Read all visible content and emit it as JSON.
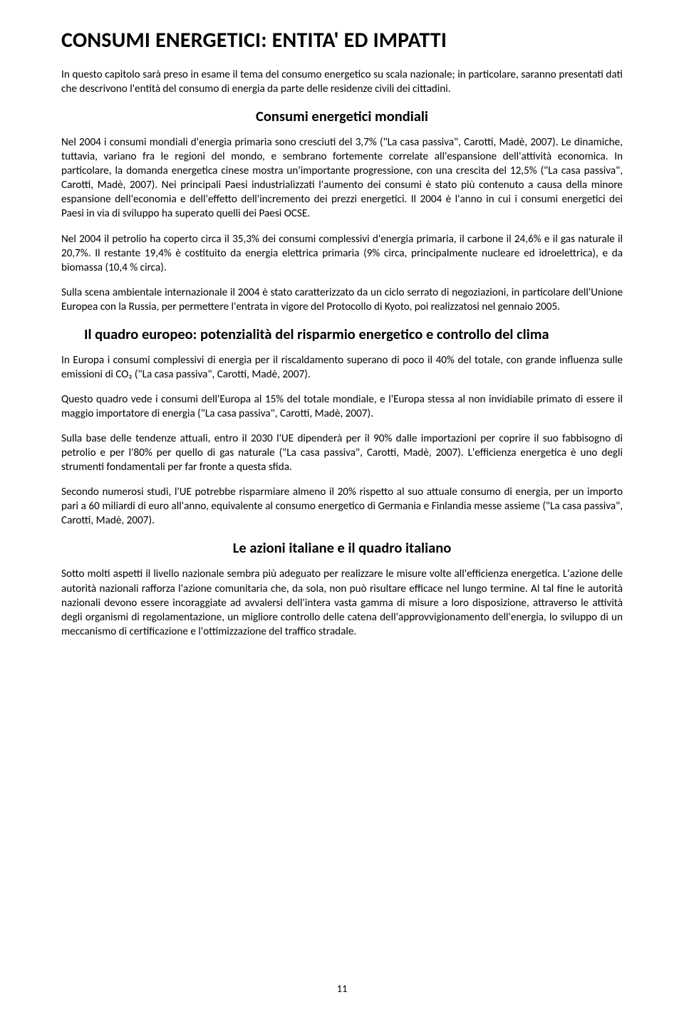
{
  "title": "CONSUMI ENERGETICI: ENTITA' ED IMPATTI",
  "intro": "In questo capitolo sarà preso in esame il tema del consumo energetico su scala nazionale; in particolare, saranno presentati dati che descrivono l'entità del consumo di energia da parte delle residenze civili dei cittadini.",
  "h_mondiali": "Consumi energetici mondiali",
  "p_mondiali_1": "Nel  2004 i consumi mondiali d'energia primaria sono cresciuti del 3,7% (\"La casa passiva\", Carotti, Madè, 2007). Le dinamiche, tuttavia, variano fra le regioni del mondo, e sembrano fortemente correlate all'espansione dell'attività economica. In particolare, la domanda energetica cinese mostra un'importante progressione, con una crescita del 12,5% (\"La casa passiva\", Carotti, Madè, 2007). Nei principali Paesi industrializzati l'aumento dei consumi è stato più contenuto a causa della minore espansione dell'economia e dell'effetto dell'incremento dei prezzi energetici. Il 2004 è l'anno in cui i consumi energetici dei Paesi in via di sviluppo ha superato quelli dei Paesi OCSE.",
  "p_mondiali_2": "Nel 2004 il petrolio ha coperto circa il 35,3% dei consumi complessivi d'energia primaria, il carbone il 24,6% e il gas naturale il 20,7%. Il restante 19,4% è costituito da energia elettrica primaria (9% circa, principalmente nucleare ed idroelettrica), e da biomassa (10,4 % circa).",
  "p_mondiali_3": "Sulla scena ambientale internazionale il 2004 è stato caratterizzato da un ciclo serrato di negoziazioni, in particolare dell'Unione Europea con la Russia, per permettere l'entrata in vigore del Protocollo di Kyoto, poi realizzatosi nel gennaio 2005.",
  "h_europeo": "Il quadro europeo: potenzialità del risparmio energetico e controllo del clima",
  "p_europeo_1": "In Europa i consumi complessivi di energia per il riscaldamento superano di poco il 40% del totale, con grande influenza sulle emissioni di CO₂ (\"La casa passiva\", Carotti, Madè, 2007).",
  "p_europeo_2": "Questo quadro vede i consumi dell'Europa al 15% del totale mondiale, e l'Europa stessa al non invidiabile primato di essere il maggio importatore di energia (\"La casa passiva\", Carotti, Madè, 2007).",
  "p_europeo_3": "Sulla base delle tendenze attuali, entro il 2030 l'UE dipenderà per il 90% dalle importazioni per coprire il suo fabbisogno di petrolio e per l'80% per quello di gas naturale (\"La casa passiva\", Carotti, Madè, 2007). L'efficienza energetica è uno degli strumenti fondamentali per far fronte a questa sfida.",
  "p_europeo_4": "Secondo numerosi studi, l'UE potrebbe risparmiare almeno il 20% rispetto al suo attuale consumo di energia, per un importo pari a 60 miliardi di euro all'anno, equivalente al consumo energetico di Germania e Finlandia messe assieme (\"La casa passiva\", Carotti, Madè, 2007).",
  "h_italiano": "Le azioni italiane e il quadro italiano",
  "p_italiano_1": "Sotto molti aspetti il livello nazionale sembra più adeguato per realizzare le misure volte all'efficienza energetica. L'azione delle autorità nazionali rafforza l'azione comunitaria che, da sola, non può risultare efficace nel lungo termine. Al tal fine le autorità nazionali devono essere incoraggiate ad avvalersi dell'intera vasta gamma di misure a loro disposizione, attraverso le attività degli organismi di regolamentazione, un migliore controllo delle catena dell'approvvigionamento dell'energia, lo sviluppo di un meccanismo di certificazione e l'ottimizzazione del traffico stradale.",
  "page_number": "11"
}
